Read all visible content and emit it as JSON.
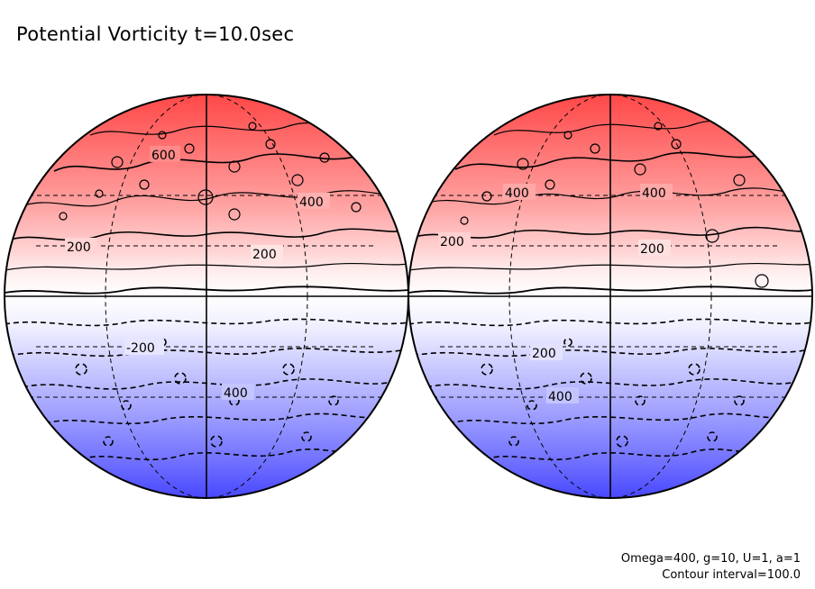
{
  "title": "Potential Vorticity t=10.0sec",
  "parameters": "Omega=400, g=10, U=1, a=1",
  "contour_interval": "Contour interval=100.0",
  "colors": {
    "positive": "#ff4444",
    "negative": "#4444ff",
    "neutral": "#ffffff"
  },
  "globes": [
    {
      "name": "left",
      "contour_labels": [
        {
          "text": "600"
        },
        {
          "text": "400"
        },
        {
          "text": "200"
        },
        {
          "text": "200"
        },
        {
          "text": "-200"
        },
        {
          "text": "400"
        }
      ]
    },
    {
      "name": "right",
      "contour_labels": [
        {
          "text": "400"
        },
        {
          "text": "400"
        },
        {
          "text": "200"
        },
        {
          "text": "200"
        },
        {
          "text": "200"
        },
        {
          "text": "400"
        }
      ]
    }
  ]
}
